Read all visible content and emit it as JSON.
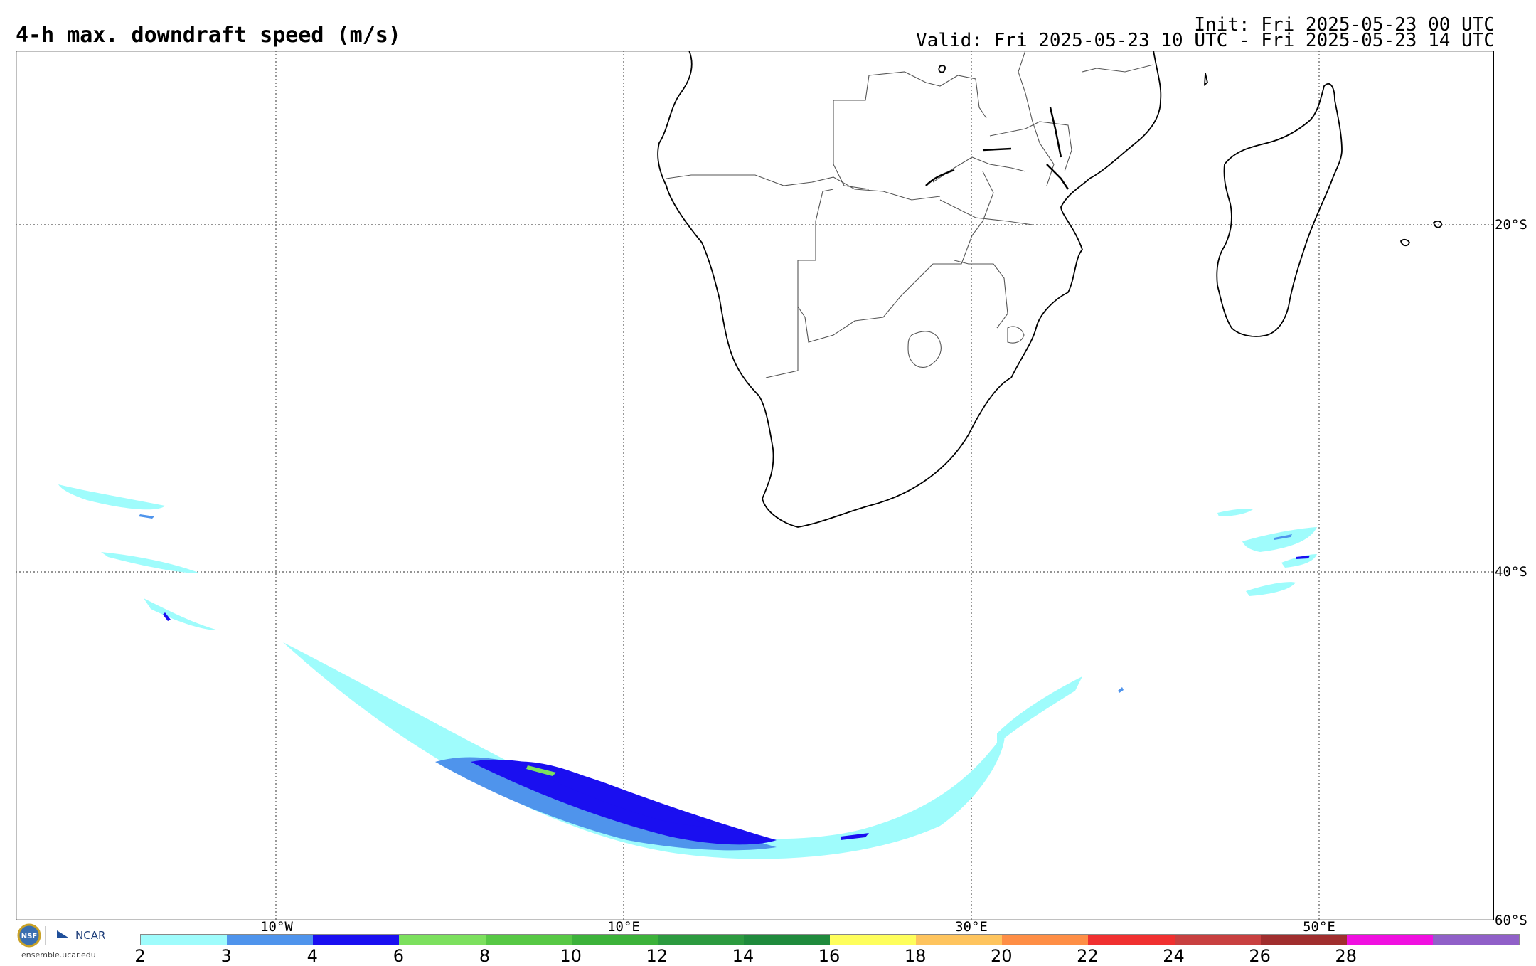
{
  "header": {
    "title": "4-h max. downdraft speed (m/s)",
    "init": "Init: Fri 2025-05-23 00 UTC",
    "valid": "Valid: Fri 2025-05-23 10 UTC - Fri 2025-05-23 14 UTC"
  },
  "map": {
    "lat_labels": [
      "20°S",
      "40°S",
      "60°S"
    ],
    "lon_labels": [
      "10°W",
      "10°E",
      "30°E",
      "50°E"
    ],
    "gridline_style": "dotted",
    "region": "Southern Africa / South Atlantic / SW Indian Ocean"
  },
  "colorbar": {
    "colors": [
      "#9ffcfc",
      "#4f94ec",
      "#1a0ff0",
      "#7ce05e",
      "#57c845",
      "#3cb23a",
      "#2c9a3f",
      "#1f8a3c",
      "#fefe5c",
      "#fec45e",
      "#fe8e46",
      "#f03030",
      "#c84040",
      "#a02e2e",
      "#f010e0",
      "#9060c8"
    ],
    "tick_labels": [
      "2",
      "3",
      "4",
      "6",
      "8",
      "10",
      "12",
      "14",
      "16",
      "18",
      "20",
      "22",
      "24",
      "26",
      "28"
    ]
  },
  "logo": {
    "text": "NCAR",
    "seal": "NSF",
    "url": "ensemble.ucar.edu"
  }
}
